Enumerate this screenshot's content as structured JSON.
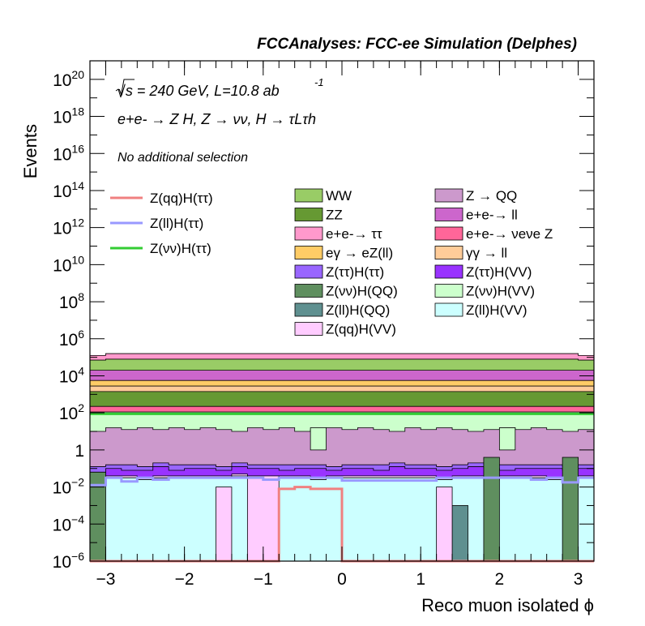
{
  "chart_data": {
    "type": "bar",
    "title": "FCCAnalyses: FCC-ee Simulation (Delphes)",
    "xlabel": "Reco muon isolated ϕ",
    "ylabel": "Events",
    "xlim": [
      -3.2,
      3.2
    ],
    "ylim": [
      1e-06,
      1e+21
    ],
    "y_scale": "log",
    "annotations": {
      "energy": "√s = 240 GeV, L=10.8 ab",
      "energy_sup": "-1",
      "process": "e+e- → Z H, Z → νν, H → τLτh",
      "selection": "No additional selection"
    },
    "x_ticks": [
      {
        "v": -3,
        "t": "−3"
      },
      {
        "v": -2,
        "t": "−2"
      },
      {
        "v": -1,
        "t": "−1"
      },
      {
        "v": 0,
        "t": "0"
      },
      {
        "v": 1,
        "t": "1"
      },
      {
        "v": 2,
        "t": "2"
      },
      {
        "v": 3,
        "t": "3"
      }
    ],
    "y_ticks": [
      {
        "e": -6,
        "t": "10",
        "s": "−6"
      },
      {
        "e": -4,
        "t": "10",
        "s": "−4"
      },
      {
        "e": -2,
        "t": "10",
        "s": "−2"
      },
      {
        "e": 0,
        "t": "1",
        "s": ""
      },
      {
        "e": 2,
        "t": "10",
        "s": "2"
      },
      {
        "e": 4,
        "t": "10",
        "s": "4"
      },
      {
        "e": 6,
        "t": "10",
        "s": "6"
      },
      {
        "e": 8,
        "t": "10",
        "s": "8"
      },
      {
        "e": 10,
        "t": "10",
        "s": "10"
      },
      {
        "e": 12,
        "t": "10",
        "s": "12"
      },
      {
        "e": 14,
        "t": "10",
        "s": "14"
      },
      {
        "e": 16,
        "t": "10",
        "s": "16"
      },
      {
        "e": 18,
        "t": "10",
        "s": "18"
      },
      {
        "e": 20,
        "t": "10",
        "s": "20"
      }
    ],
    "stack_log10_tops": {
      "ZllHQQ_band": [
        -6,
        -6,
        -6,
        -6,
        -6,
        -6,
        -6,
        -6,
        -6,
        -6,
        -6,
        -6,
        -6,
        -6,
        -6,
        -6,
        -6,
        -6,
        -6,
        -6,
        -6,
        -6,
        -6,
        -6,
        -6,
        -6,
        -6,
        -6,
        -6,
        -6,
        -6,
        -6
      ],
      "ZllHVV": [
        -1.9,
        -1.5,
        -1.5,
        -1.6,
        -1.5,
        -1.5,
        -1.5,
        -1.5,
        -1.5,
        -1.4,
        -1.5,
        -1.5,
        -1.5,
        -1.5,
        -1.6,
        -1.5,
        -1.5,
        -1.5,
        -1.5,
        -1.5,
        -1.5,
        -1.5,
        -1.6,
        -1.5,
        -1.5,
        -1.6,
        -1.5,
        -1.5,
        -1.5,
        -1.6,
        -1.5,
        -1.5
      ],
      "ZqqHVV": [
        -1.8,
        -1.4,
        -1.4,
        -1.5,
        -1.4,
        -1.4,
        -1.4,
        -1.4,
        -1.4,
        -1.3,
        -1.4,
        -1.4,
        -1.4,
        -1.4,
        -1.5,
        -1.4,
        -1.4,
        -1.4,
        -1.4,
        -1.4,
        -1.4,
        -1.4,
        -1.5,
        -1.4,
        -1.4,
        -1.5,
        -1.4,
        -1.4,
        -1.4,
        -1.5,
        -1.4,
        -1.4
      ],
      "ZttHVV": [
        -1.2,
        -1.0,
        -1.1,
        -1.1,
        -0.9,
        -1.1,
        -1.0,
        -1.0,
        -1.1,
        -0.9,
        -1.0,
        -1.0,
        -1.1,
        -1.0,
        -1.0,
        -1.1,
        -1.0,
        -1.0,
        -1.1,
        -0.9,
        -1.0,
        -1.0,
        -1.1,
        -1.0,
        -0.9,
        -1.0,
        -1.1,
        -1.0,
        -1.0,
        -1.0,
        -1.1,
        -1.0
      ],
      "ZttHtt": [
        -0.9,
        -0.8,
        -0.8,
        -0.9,
        -0.7,
        -0.8,
        -0.8,
        -0.8,
        -0.9,
        -0.7,
        -0.8,
        -0.8,
        -0.8,
        -0.8,
        -0.8,
        -0.9,
        -0.8,
        -0.8,
        -0.8,
        -0.7,
        -0.8,
        -0.8,
        -0.9,
        -0.8,
        -0.7,
        -0.8,
        -0.8,
        -0.8,
        -0.8,
        -0.8,
        -0.9,
        -0.8
      ],
      "ZQQ": [
        1.0,
        1.2,
        1.1,
        1.2,
        1.1,
        1.2,
        1.1,
        1.2,
        1.1,
        1.0,
        1.2,
        1.1,
        1.2,
        1.0,
        1.1,
        1.2,
        1.1,
        1.2,
        1.1,
        1.0,
        1.2,
        1.1,
        1.2,
        1.1,
        1.0,
        1.1,
        1.2,
        1.1,
        1.2,
        1.1,
        1.0,
        1.1
      ],
      "ZvvHVV": [
        2.05,
        2.05,
        2.05,
        2.05,
        2.05,
        2.05,
        2.05,
        2.05,
        2.05,
        2.05,
        2.05,
        2.05,
        2.05,
        2.05,
        2.05,
        2.05,
        2.05,
        2.05,
        2.05,
        2.05,
        2.05,
        2.05,
        2.05,
        2.05,
        2.05,
        2.05,
        2.05,
        2.05,
        2.05,
        2.05,
        2.05,
        2.05
      ],
      "eeZvv": [
        2.35,
        2.35,
        2.35,
        2.35,
        2.35,
        2.35,
        2.35,
        2.35,
        2.35,
        2.35,
        2.35,
        2.35,
        2.35,
        2.35,
        2.35,
        2.35,
        2.35,
        2.35,
        2.35,
        2.35,
        2.35,
        2.35,
        2.35,
        2.35,
        2.35,
        2.35,
        2.35,
        2.35,
        2.35,
        2.35,
        2.35,
        2.35
      ],
      "ZZ": [
        3.15,
        3.15,
        3.15,
        3.15,
        3.15,
        3.15,
        3.15,
        3.15,
        3.15,
        3.15,
        3.15,
        3.15,
        3.15,
        3.15,
        3.15,
        3.15,
        3.15,
        3.15,
        3.15,
        3.15,
        3.15,
        3.15,
        3.15,
        3.15,
        3.15,
        3.15,
        3.15,
        3.15,
        3.15,
        3.15,
        3.15,
        3.15
      ],
      "gamgamll": [
        3.45,
        3.45,
        3.45,
        3.45,
        3.45,
        3.45,
        3.45,
        3.45,
        3.45,
        3.45,
        3.45,
        3.45,
        3.45,
        3.45,
        3.45,
        3.45,
        3.45,
        3.45,
        3.45,
        3.45,
        3.45,
        3.45,
        3.45,
        3.45,
        3.45,
        3.45,
        3.45,
        3.45,
        3.45,
        3.45,
        3.45,
        3.45
      ],
      "egamZll": [
        3.75,
        3.75,
        3.75,
        3.75,
        3.75,
        3.75,
        3.75,
        3.75,
        3.75,
        3.75,
        3.75,
        3.75,
        3.75,
        3.75,
        3.75,
        3.75,
        3.75,
        3.75,
        3.75,
        3.75,
        3.75,
        3.75,
        3.75,
        3.75,
        3.75,
        3.75,
        3.75,
        3.75,
        3.75,
        3.75,
        3.75,
        3.75
      ],
      "eell": [
        4.3,
        4.3,
        4.3,
        4.3,
        4.3,
        4.3,
        4.3,
        4.3,
        4.3,
        4.3,
        4.3,
        4.3,
        4.3,
        4.3,
        4.3,
        4.3,
        4.3,
        4.3,
        4.3,
        4.3,
        4.3,
        4.3,
        4.3,
        4.3,
        4.3,
        4.3,
        4.3,
        4.3,
        4.3,
        4.3,
        4.3,
        4.3
      ],
      "WW": [
        4.85,
        4.9,
        4.9,
        4.9,
        4.9,
        4.9,
        4.9,
        4.9,
        4.9,
        4.9,
        4.9,
        4.9,
        4.9,
        4.9,
        4.9,
        4.9,
        4.9,
        4.9,
        4.9,
        4.9,
        4.9,
        4.9,
        4.9,
        4.9,
        4.9,
        4.9,
        4.9,
        4.9,
        4.9,
        4.9,
        4.9,
        4.85
      ],
      "eett": [
        5.1,
        5.2,
        5.2,
        5.2,
        5.2,
        5.2,
        5.2,
        5.2,
        5.2,
        5.2,
        5.2,
        5.2,
        5.2,
        5.2,
        5.2,
        5.2,
        5.2,
        5.2,
        5.2,
        5.2,
        5.2,
        5.2,
        5.2,
        5.2,
        5.2,
        5.2,
        5.2,
        5.2,
        5.2,
        5.2,
        5.2,
        5.1
      ]
    },
    "extra_bins": [
      {
        "x0": -3.2,
        "x1": -3.0,
        "log10": -1.2,
        "color": "#5f8f5f"
      },
      {
        "x0": 1.8,
        "x1": 2.0,
        "log10": -0.4,
        "color": "#5f8f5f"
      },
      {
        "x0": 2.8,
        "x1": 3.0,
        "log10": -0.4,
        "color": "#5f8f5f"
      },
      {
        "x0": 1.4,
        "x1": 1.6,
        "log10": -3.0,
        "color": "#5f9090"
      },
      {
        "x0": -1.2,
        "x1": -0.8,
        "log10": -1.4,
        "color": "#ffccff"
      },
      {
        "x0": -1.6,
        "x1": -1.4,
        "log10": -2.0,
        "color": "#ffccff"
      },
      {
        "x0": 1.2,
        "x1": 1.4,
        "log10": -2.0,
        "color": "#ffccff"
      }
    ],
    "stack_gaps": [
      {
        "x0": -0.4,
        "x1": -0.2,
        "top": 0.0
      },
      {
        "x0": 2.0,
        "x1": 2.2,
        "top": 0.0
      }
    ],
    "lines": [
      {
        "name": "Z(qq)H(ττ)",
        "color": "#f08080",
        "points": [
          [
            -3.2,
            -6
          ],
          [
            -0.8,
            -6
          ],
          [
            -0.8,
            -2.1
          ],
          [
            -0.6,
            -2.1
          ],
          [
            -0.6,
            -2.0
          ],
          [
            -0.4,
            -2.0
          ],
          [
            -0.4,
            -2.1
          ],
          [
            0.0,
            -2.1
          ],
          [
            0.0,
            -6
          ],
          [
            3.2,
            -6
          ]
        ]
      },
      {
        "name": "Z(ll)H(ττ)",
        "color": "#9999ff",
        "points": [
          [
            -3.2,
            -1.9
          ],
          [
            -3.0,
            -1.9
          ],
          [
            -3.0,
            -1.5
          ],
          [
            -2.8,
            -1.5
          ],
          [
            -2.8,
            -1.7
          ],
          [
            -2.6,
            -1.7
          ],
          [
            -2.6,
            -1.5
          ],
          [
            -2.4,
            -1.5
          ],
          [
            -2.4,
            -1.6
          ],
          [
            -2.2,
            -1.6
          ],
          [
            -2.2,
            -1.5
          ],
          [
            -1.0,
            -1.5
          ],
          [
            -1.0,
            -1.6
          ],
          [
            -0.8,
            -1.6
          ],
          [
            -0.8,
            -1.5
          ],
          [
            0.0,
            -1.5
          ],
          [
            0.0,
            -1.65
          ],
          [
            1.2,
            -1.65
          ],
          [
            1.2,
            -1.5
          ],
          [
            2.4,
            -1.5
          ],
          [
            2.4,
            -1.6
          ],
          [
            2.6,
            -1.6
          ],
          [
            2.6,
            -1.5
          ],
          [
            2.8,
            -1.5
          ],
          [
            2.8,
            -1.75
          ],
          [
            3.0,
            -1.75
          ],
          [
            3.0,
            -1.5
          ],
          [
            3.2,
            -1.5
          ]
        ]
      },
      {
        "name": "Z(νν)H(ττ)",
        "color": "#33cc33",
        "points": [
          [
            -3.2,
            1.95
          ],
          [
            3.2,
            1.95
          ]
        ]
      }
    ]
  },
  "legend": {
    "lines": [
      {
        "label": "Z(qq)H(ττ)",
        "color": "#f08080"
      },
      {
        "label": "Z(ll)H(ττ)",
        "color": "#9999ff"
      },
      {
        "label": "Z(νν)H(ττ)",
        "color": "#33cc33"
      }
    ],
    "col1": [
      {
        "label": "WW",
        "color": "#99cc66"
      },
      {
        "label": "ZZ",
        "color": "#669933"
      },
      {
        "label": "e+e-→ ττ",
        "color": "#ff99cc"
      },
      {
        "label": "eγ → eZ(ll)",
        "color": "#ffcc66"
      },
      {
        "label": "Z(ττ)H(ττ)",
        "color": "#9966ff"
      },
      {
        "label": "Z(νν)H(QQ)",
        "color": "#5f8f5f"
      },
      {
        "label": "Z(ll)H(QQ)",
        "color": "#5f9090"
      },
      {
        "label": "Z(qq)H(VV)",
        "color": "#ffccff"
      }
    ],
    "col2": [
      {
        "label": "Z → QQ",
        "color": "#cc99cc"
      },
      {
        "label": "e+e-→ ll",
        "color": "#cc66cc"
      },
      {
        "label": "e+e-→ νeνe Z",
        "color": "#ff6699"
      },
      {
        "label": "γγ → ll",
        "color": "#ffcc99"
      },
      {
        "label": "Z(ττ)H(VV)",
        "color": "#9933ff"
      },
      {
        "label": "Z(νν)H(VV)",
        "color": "#ccffcc"
      },
      {
        "label": "Z(ll)H(VV)",
        "color": "#ccffff"
      }
    ]
  },
  "colors": {
    "eett": "#ff99cc",
    "WW": "#99cc66",
    "eell": "#cc66cc",
    "egamZll": "#ffcc66",
    "gamgamll": "#ffcc99",
    "ZZ": "#669933",
    "eeZvv": "#ff6699",
    "ZvvHVV": "#ccffcc",
    "ZQQ": "#cc99cc",
    "ZttHtt": "#9966ff",
    "ZttHVV": "#9933ff",
    "ZqqHVV": "#ffccff",
    "ZllHVV": "#ccffff",
    "ZllHQQ_band": "#5f9090"
  }
}
